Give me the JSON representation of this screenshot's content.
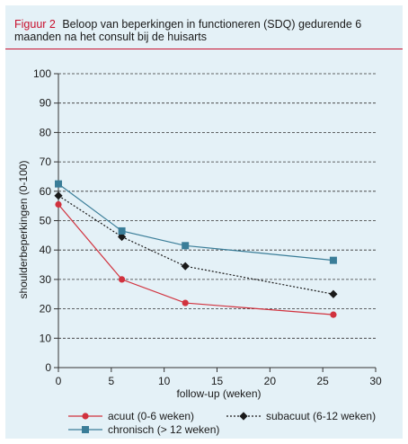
{
  "caption": {
    "label": "Figuur 2",
    "text": "Beloop van beperkingen in functioneren (SDQ) gedurende 6 maanden na het consult bij de huisarts"
  },
  "colors": {
    "acuut": "#d1323e",
    "subacuut": "#1a1a1a",
    "chronisch": "#3a7d98",
    "grid": "#333333",
    "background": "#e4f1f7",
    "accent": "#c8102e"
  },
  "chart_data": {
    "type": "line",
    "xlabel": "follow-up (weken)",
    "ylabel": "shoulderbeperkingen (0-100)",
    "xlim": [
      0,
      30
    ],
    "ylim": [
      0,
      100
    ],
    "xticks": [
      "0",
      "5",
      "10",
      "15",
      "20",
      "25",
      "30"
    ],
    "yticks": [
      "0",
      "10",
      "20",
      "30",
      "40",
      "50",
      "60",
      "70",
      "80",
      "90",
      "100"
    ],
    "grid": "horizontal dashed",
    "legend_position": "bottom",
    "series": [
      {
        "name": "acuut (0-6 weken)",
        "key": "acuut",
        "marker": "circle",
        "line": "solid",
        "x": [
          0,
          6,
          12,
          26
        ],
        "y": [
          55.5,
          30,
          22,
          18
        ]
      },
      {
        "name": "subacuut (6-12 weken)",
        "key": "subacuut",
        "marker": "diamond",
        "line": "dotted",
        "x": [
          0,
          6,
          12,
          26
        ],
        "y": [
          58.5,
          44.5,
          34.5,
          25
        ]
      },
      {
        "name": "chronisch (> 12 weken)",
        "key": "chronisch",
        "marker": "square",
        "line": "solid",
        "x": [
          0,
          6,
          12,
          26
        ],
        "y": [
          62.5,
          46.5,
          41.5,
          36.5
        ]
      }
    ]
  }
}
